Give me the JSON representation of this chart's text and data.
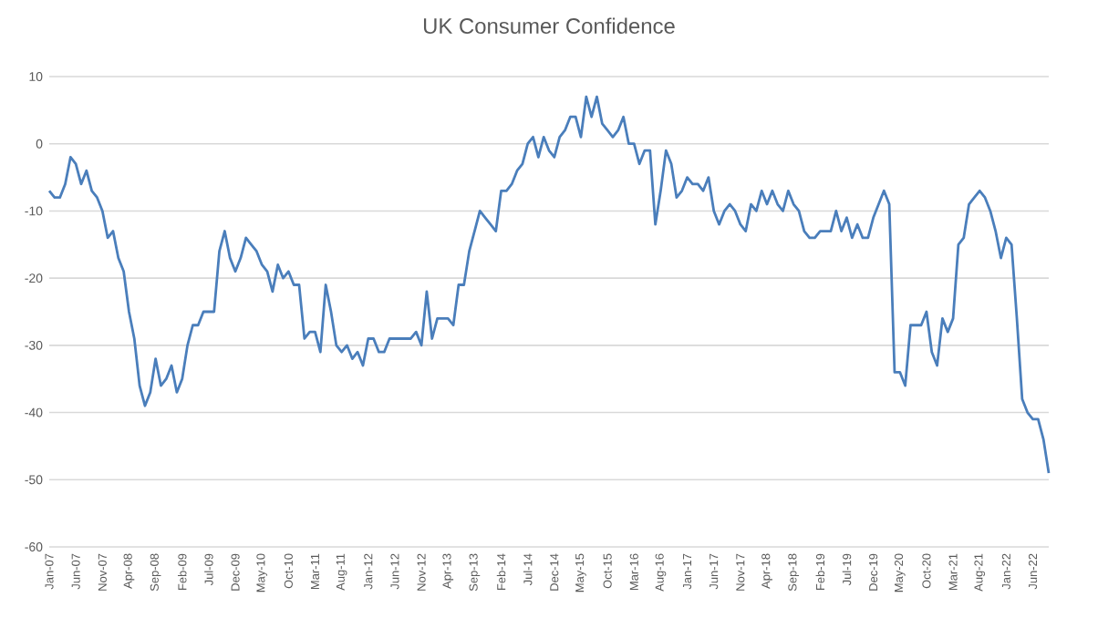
{
  "chart_data": {
    "type": "line",
    "title": "UK Consumer Confidence",
    "color": "#4a7ebb",
    "grid": "y",
    "legend": false,
    "marker": "none",
    "line_style": "solid",
    "x": [
      "2007-01",
      "2007-02",
      "2007-03",
      "2007-04",
      "2007-05",
      "2007-06",
      "2007-07",
      "2007-08",
      "2007-09",
      "2007-10",
      "2007-11",
      "2007-12",
      "2008-01",
      "2008-02",
      "2008-03",
      "2008-04",
      "2008-05",
      "2008-06",
      "2008-07",
      "2008-08",
      "2008-09",
      "2008-10",
      "2008-11",
      "2008-12",
      "2009-01",
      "2009-02",
      "2009-03",
      "2009-04",
      "2009-05",
      "2009-06",
      "2009-07",
      "2009-08",
      "2009-09",
      "2009-10",
      "2009-11",
      "2009-12",
      "2010-01",
      "2010-02",
      "2010-03",
      "2010-04",
      "2010-05",
      "2010-06",
      "2010-07",
      "2010-08",
      "2010-09",
      "2010-10",
      "2010-11",
      "2010-12",
      "2011-01",
      "2011-02",
      "2011-03",
      "2011-04",
      "2011-05",
      "2011-06",
      "2011-07",
      "2011-08",
      "2011-09",
      "2011-10",
      "2011-11",
      "2011-12",
      "2012-01",
      "2012-02",
      "2012-03",
      "2012-04",
      "2012-05",
      "2012-06",
      "2012-07",
      "2012-08",
      "2012-09",
      "2012-10",
      "2012-11",
      "2012-12",
      "2013-01",
      "2013-02",
      "2013-03",
      "2013-04",
      "2013-05",
      "2013-06",
      "2013-07",
      "2013-08",
      "2013-09",
      "2013-10",
      "2013-11",
      "2013-12",
      "2014-01",
      "2014-02",
      "2014-03",
      "2014-04",
      "2014-05",
      "2014-06",
      "2014-07",
      "2014-08",
      "2014-09",
      "2014-10",
      "2014-11",
      "2014-12",
      "2015-01",
      "2015-02",
      "2015-03",
      "2015-04",
      "2015-05",
      "2015-06",
      "2015-07",
      "2015-08",
      "2015-09",
      "2015-10",
      "2015-11",
      "2015-12",
      "2016-01",
      "2016-02",
      "2016-03",
      "2016-04",
      "2016-05",
      "2016-06",
      "2016-07",
      "2016-08",
      "2016-09",
      "2016-10",
      "2016-11",
      "2016-12",
      "2017-01",
      "2017-02",
      "2017-03",
      "2017-04",
      "2017-05",
      "2017-06",
      "2017-07",
      "2017-08",
      "2017-09",
      "2017-10",
      "2017-11",
      "2017-12",
      "2018-01",
      "2018-02",
      "2018-03",
      "2018-04",
      "2018-05",
      "2018-06",
      "2018-07",
      "2018-08",
      "2018-09",
      "2018-10",
      "2018-11",
      "2018-12",
      "2019-01",
      "2019-02",
      "2019-03",
      "2019-04",
      "2019-05",
      "2019-06",
      "2019-07",
      "2019-08",
      "2019-09",
      "2019-10",
      "2019-11",
      "2019-12",
      "2020-01",
      "2020-02",
      "2020-03",
      "2020-04",
      "2020-05",
      "2020-06",
      "2020-07",
      "2020-08",
      "2020-09",
      "2020-10",
      "2020-11",
      "2020-12",
      "2021-01",
      "2021-02",
      "2021-03",
      "2021-04",
      "2021-05",
      "2021-06",
      "2021-07",
      "2021-08",
      "2021-09",
      "2021-10",
      "2021-11",
      "2021-12",
      "2022-01",
      "2022-02",
      "2022-03",
      "2022-04",
      "2022-05",
      "2022-06",
      "2022-07",
      "2022-08",
      "2022-09"
    ],
    "values": [
      -7,
      -8,
      -8,
      -6,
      -2,
      -3,
      -6,
      -4,
      -7,
      -8,
      -10,
      -14,
      -13,
      -17,
      -19,
      -25,
      -29,
      -36,
      -39,
      -37,
      -32,
      -36,
      -35,
      -33,
      -37,
      -35,
      -30,
      -27,
      -27,
      -25,
      -25,
      -25,
      -16,
      -13,
      -17,
      -19,
      -17,
      -14,
      -15,
      -16,
      -18,
      -19,
      -22,
      -18,
      -20,
      -19,
      -21,
      -21,
      -29,
      -28,
      -28,
      -31,
      -21,
      -25,
      -30,
      -31,
      -30,
      -32,
      -31,
      -33,
      -29,
      -29,
      -31,
      -31,
      -29,
      -29,
      -29,
      -29,
      -29,
      -28,
      -30,
      -22,
      -29,
      -26,
      -26,
      -26,
      -27,
      -21,
      -21,
      -16,
      -13,
      -10,
      -11,
      -12,
      -13,
      -7,
      -7,
      -6,
      -4,
      -3,
      0,
      1,
      -2,
      1,
      -1,
      -2,
      1,
      2,
      4,
      4,
      1,
      7,
      4,
      7,
      3,
      2,
      1,
      2,
      4,
      0,
      0,
      -3,
      -1,
      -1,
      -12,
      -7,
      -1,
      -3,
      -8,
      -7,
      -5,
      -6,
      -6,
      -7,
      -5,
      -10,
      -12,
      -10,
      -9,
      -10,
      -12,
      -13,
      -9,
      -10,
      -7,
      -9,
      -7,
      -9,
      -10,
      -7,
      -9,
      -10,
      -13,
      -14,
      -14,
      -13,
      -13,
      -13,
      -10,
      -13,
      -11,
      -14,
      -12,
      -14,
      -14,
      -11,
      -9,
      -7,
      -9,
      -34,
      -34,
      -36,
      -27,
      -27,
      -27,
      -25,
      -31,
      -33,
      -26,
      -28,
      -26,
      -15,
      -14,
      -9,
      -8,
      -7,
      -8,
      -10,
      -13,
      -17,
      -14,
      -15,
      -26,
      -38,
      -40,
      -41,
      -41,
      -44,
      -49
    ],
    "xlim": [
      "2007-01",
      "2022-09"
    ],
    "xticks": [
      {
        "value": "2007-01",
        "label": "Jan-07"
      },
      {
        "value": "2007-06",
        "label": "Jun-07"
      },
      {
        "value": "2007-11",
        "label": "Nov-07"
      },
      {
        "value": "2008-04",
        "label": "Apr-08"
      },
      {
        "value": "2008-09",
        "label": "Sep-08"
      },
      {
        "value": "2009-02",
        "label": "Feb-09"
      },
      {
        "value": "2009-07",
        "label": "Jul-09"
      },
      {
        "value": "2009-12",
        "label": "Dec-09"
      },
      {
        "value": "2010-05",
        "label": "May-10"
      },
      {
        "value": "2010-10",
        "label": "Oct-10"
      },
      {
        "value": "2011-03",
        "label": "Mar-11"
      },
      {
        "value": "2011-08",
        "label": "Aug-11"
      },
      {
        "value": "2012-01",
        "label": "Jan-12"
      },
      {
        "value": "2012-06",
        "label": "Jun-12"
      },
      {
        "value": "2012-11",
        "label": "Nov-12"
      },
      {
        "value": "2013-04",
        "label": "Apr-13"
      },
      {
        "value": "2013-09",
        "label": "Sep-13"
      },
      {
        "value": "2014-02",
        "label": "Feb-14"
      },
      {
        "value": "2014-07",
        "label": "Jul-14"
      },
      {
        "value": "2014-12",
        "label": "Dec-14"
      },
      {
        "value": "2015-05",
        "label": "May-15"
      },
      {
        "value": "2015-10",
        "label": "Oct-15"
      },
      {
        "value": "2016-03",
        "label": "Mar-16"
      },
      {
        "value": "2016-08",
        "label": "Aug-16"
      },
      {
        "value": "2017-01",
        "label": "Jan-17"
      },
      {
        "value": "2017-06",
        "label": "Jun-17"
      },
      {
        "value": "2017-11",
        "label": "Nov-17"
      },
      {
        "value": "2018-04",
        "label": "Apr-18"
      },
      {
        "value": "2018-09",
        "label": "Sep-18"
      },
      {
        "value": "2019-02",
        "label": "Feb-19"
      },
      {
        "value": "2019-07",
        "label": "Jul-19"
      },
      {
        "value": "2019-12",
        "label": "Dec-19"
      },
      {
        "value": "2020-05",
        "label": "May-20"
      },
      {
        "value": "2020-10",
        "label": "Oct-20"
      },
      {
        "value": "2021-03",
        "label": "Mar-21"
      },
      {
        "value": "2021-08",
        "label": "Aug-21"
      },
      {
        "value": "2022-01",
        "label": "Jan-22"
      },
      {
        "value": "2022-06",
        "label": "Jun-22"
      }
    ],
    "ylim": [
      -60,
      10
    ],
    "yticks": [
      -60,
      -50,
      -40,
      -30,
      -20,
      -10,
      0,
      10
    ]
  }
}
